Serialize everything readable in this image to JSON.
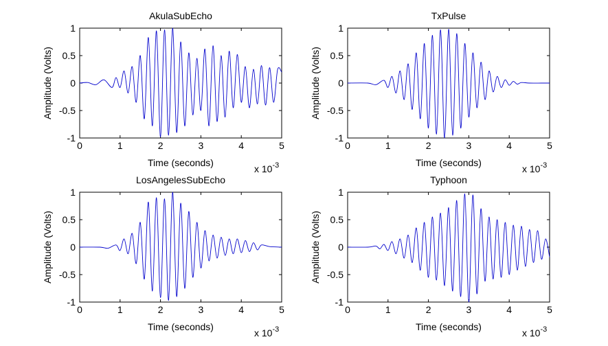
{
  "figure": {
    "background": "#ffffff",
    "line_color": "#0000cc",
    "axes_color": "#000000"
  },
  "chart_data": [
    {
      "type": "line",
      "title": "AkulaSubEcho",
      "xlabel": "Time (seconds)",
      "ylabel": "Amplitude (Volts)",
      "x_multiplier_label": "x 10",
      "x_multiplier_exponent": "-3",
      "xlim": [
        0,
        0.005
      ],
      "ylim": [
        -1,
        1
      ],
      "xticks": [
        0,
        0.001,
        0.002,
        0.003,
        0.004,
        0.005
      ],
      "xtick_labels": [
        "0",
        "1",
        "2",
        "3",
        "4",
        "5"
      ],
      "yticks": [
        -1,
        -0.5,
        0,
        0.5,
        1
      ],
      "ytick_labels": [
        "-1",
        "-0.5",
        "0",
        "0.5",
        "1"
      ],
      "grid": false,
      "series": [
        {
          "x": [
            0,
            0.0002,
            0.0004,
            0.0006,
            0.0008,
            0.0009,
            0.001,
            0.0011,
            0.0012,
            0.0013,
            0.0014,
            0.0015,
            0.0016,
            0.0017,
            0.0018,
            0.0019,
            0.002,
            0.0021,
            0.0022,
            0.0023,
            0.0024,
            0.0025,
            0.0026,
            0.0027,
            0.0028,
            0.0029,
            0.003,
            0.0031,
            0.0032,
            0.0033,
            0.0034,
            0.0035,
            0.0036,
            0.0037,
            0.0038,
            0.0039,
            0.004,
            0.0041,
            0.0042,
            0.0043,
            0.0044,
            0.0045,
            0.0046,
            0.0047,
            0.0048,
            0.0049,
            0.005
          ],
          "y": [
            0,
            0.01,
            -0.03,
            0.06,
            -0.08,
            0.1,
            -0.08,
            0.22,
            -0.18,
            0.3,
            -0.35,
            0.5,
            -0.65,
            0.83,
            -0.78,
            0.95,
            -0.98,
            0.97,
            -0.95,
            1.0,
            -0.9,
            0.75,
            -0.78,
            0.55,
            -0.58,
            0.45,
            -0.5,
            0.62,
            -0.78,
            0.68,
            -0.7,
            0.5,
            -0.62,
            0.58,
            -0.45,
            0.52,
            -0.35,
            0.3,
            -0.45,
            0.25,
            -0.38,
            0.32,
            -0.4,
            0.28,
            -0.35,
            0.25,
            0.2
          ]
        }
      ]
    },
    {
      "type": "line",
      "title": "TxPulse",
      "xlabel": "Time (seconds)",
      "ylabel": "Amplitude (Volts)",
      "x_multiplier_label": "x 10",
      "x_multiplier_exponent": "-3",
      "xlim": [
        0,
        0.005
      ],
      "ylim": [
        -1,
        1
      ],
      "xticks": [
        0,
        0.001,
        0.002,
        0.003,
        0.004,
        0.005
      ],
      "xtick_labels": [
        "0",
        "1",
        "2",
        "3",
        "4",
        "5"
      ],
      "yticks": [
        -1,
        -0.5,
        0,
        0.5,
        1
      ],
      "ytick_labels": [
        "-1",
        "-0.5",
        "0",
        "0.5",
        "1"
      ],
      "grid": false,
      "series": [
        {
          "x": [
            0,
            0.0005,
            0.0007,
            0.0009,
            0.001,
            0.0011,
            0.0012,
            0.0013,
            0.0014,
            0.0015,
            0.0016,
            0.0017,
            0.0018,
            0.0019,
            0.002,
            0.0021,
            0.0022,
            0.0023,
            0.0024,
            0.0025,
            0.0026,
            0.0027,
            0.0028,
            0.0029,
            0.003,
            0.0031,
            0.0032,
            0.0033,
            0.0034,
            0.0035,
            0.0036,
            0.0037,
            0.0038,
            0.0039,
            0.004,
            0.0041,
            0.0042,
            0.0043,
            0.0045,
            0.0048,
            0.005
          ],
          "y": [
            0,
            0.0,
            -0.03,
            0.05,
            -0.08,
            0.12,
            -0.18,
            0.22,
            -0.3,
            0.35,
            -0.48,
            0.55,
            -0.65,
            0.72,
            -0.82,
            0.87,
            -0.93,
            0.97,
            -1.0,
            0.98,
            -0.95,
            0.9,
            -0.82,
            0.72,
            -0.62,
            0.55,
            -0.45,
            0.38,
            -0.3,
            0.22,
            -0.16,
            0.12,
            -0.08,
            0.06,
            -0.04,
            0.03,
            -0.02,
            0.01,
            0.0,
            0.0,
            0.0
          ]
        }
      ]
    },
    {
      "type": "line",
      "title": "LosAngelesSubEcho",
      "xlabel": "Time (seconds)",
      "ylabel": "Amplitude (Volts)",
      "x_multiplier_label": "x 10",
      "x_multiplier_exponent": "-3",
      "xlim": [
        0,
        0.005
      ],
      "ylim": [
        -1,
        1
      ],
      "xticks": [
        0,
        0.001,
        0.002,
        0.003,
        0.004,
        0.005
      ],
      "xtick_labels": [
        "0",
        "1",
        "2",
        "3",
        "4",
        "5"
      ],
      "yticks": [
        -1,
        -0.5,
        0,
        0.5,
        1
      ],
      "ytick_labels": [
        "-1",
        "-0.5",
        "0",
        "0.5",
        "1"
      ],
      "grid": false,
      "series": [
        {
          "x": [
            0,
            0.0005,
            0.0007,
            0.0009,
            0.001,
            0.0011,
            0.0012,
            0.0013,
            0.0014,
            0.0015,
            0.0016,
            0.0017,
            0.0018,
            0.0019,
            0.002,
            0.0021,
            0.0022,
            0.0023,
            0.0024,
            0.0025,
            0.0026,
            0.0027,
            0.0028,
            0.0029,
            0.003,
            0.0031,
            0.0032,
            0.0033,
            0.0034,
            0.0035,
            0.0036,
            0.0037,
            0.0038,
            0.0039,
            0.004,
            0.0041,
            0.0042,
            0.0043,
            0.0044,
            0.0045,
            0.0047,
            0.005
          ],
          "y": [
            0,
            0.0,
            -0.02,
            0.04,
            -0.06,
            0.15,
            -0.12,
            0.25,
            -0.3,
            0.45,
            -0.58,
            0.82,
            -0.8,
            0.9,
            -0.92,
            0.88,
            -0.97,
            1.0,
            -0.9,
            0.8,
            -0.75,
            0.65,
            -0.55,
            0.45,
            -0.38,
            0.3,
            -0.25,
            0.22,
            -0.2,
            0.18,
            -0.15,
            0.15,
            -0.12,
            0.15,
            -0.1,
            0.12,
            -0.08,
            0.08,
            -0.05,
            0.04,
            0.01,
            0.0
          ]
        }
      ]
    },
    {
      "type": "line",
      "title": "Typhoon",
      "xlabel": "Time (seconds)",
      "ylabel": "Amplitude (Volts)",
      "x_multiplier_label": "x 10",
      "x_multiplier_exponent": "-3",
      "xlim": [
        0,
        0.005
      ],
      "ylim": [
        -1,
        1
      ],
      "xticks": [
        0,
        0.001,
        0.002,
        0.003,
        0.004,
        0.005
      ],
      "xtick_labels": [
        "0",
        "1",
        "2",
        "3",
        "4",
        "5"
      ],
      "yticks": [
        -1,
        -0.5,
        0,
        0.5,
        1
      ],
      "ytick_labels": [
        "-1",
        "-0.5",
        "0",
        "0.5",
        "1"
      ],
      "grid": false,
      "series": [
        {
          "x": [
            0,
            0.0005,
            0.0007,
            0.0008,
            0.0009,
            0.001,
            0.0011,
            0.0012,
            0.0013,
            0.0014,
            0.0015,
            0.0016,
            0.0017,
            0.0018,
            0.0019,
            0.002,
            0.0021,
            0.0022,
            0.0023,
            0.0024,
            0.0025,
            0.0026,
            0.0027,
            0.0028,
            0.0029,
            0.003,
            0.0031,
            0.0032,
            0.0033,
            0.0034,
            0.0035,
            0.0036,
            0.0037,
            0.0038,
            0.0039,
            0.004,
            0.0041,
            0.0042,
            0.0043,
            0.0044,
            0.0045,
            0.0046,
            0.0047,
            0.0048,
            0.0049,
            0.005
          ],
          "y": [
            0,
            0.0,
            0.02,
            -0.03,
            0.05,
            -0.06,
            0.1,
            -0.12,
            0.15,
            -0.2,
            0.22,
            -0.28,
            0.35,
            -0.42,
            0.45,
            -0.55,
            0.55,
            -0.6,
            0.62,
            -0.7,
            0.72,
            -0.8,
            0.85,
            -0.9,
            0.97,
            -1.0,
            0.95,
            -0.85,
            0.7,
            -0.62,
            0.55,
            -0.58,
            0.5,
            -0.55,
            0.45,
            -0.5,
            0.4,
            -0.42,
            0.38,
            -0.35,
            0.32,
            -0.28,
            0.3,
            -0.22,
            0.15,
            -0.18
          ]
        }
      ]
    }
  ]
}
